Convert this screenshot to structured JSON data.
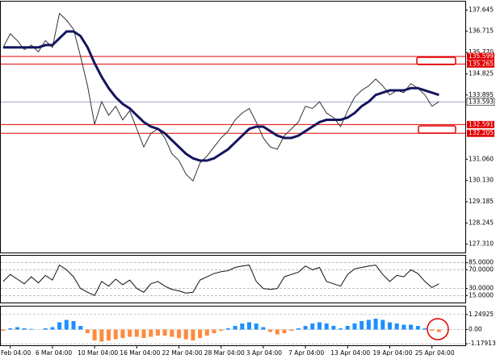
{
  "chart_data": [
    {
      "type": "line",
      "categories": [
        null,
        "Feb 04:00",
        null,
        null,
        null,
        null,
        null,
        "6 Mar 04:00",
        null,
        null,
        null,
        null,
        null,
        "10 Mar 04:00",
        null,
        null,
        null,
        null,
        null,
        "16 Mar 04:00",
        null,
        null,
        null,
        null,
        null,
        "22 Mar 04:00",
        null,
        null,
        null,
        null,
        null,
        "28 Mar 04:00",
        null,
        null,
        null,
        null,
        null,
        "3 Apr 04:00",
        null,
        null,
        null,
        null,
        null,
        "7 Apr 04:00",
        null,
        null,
        null,
        null,
        null,
        "13 Apr 04:00",
        null,
        null,
        null,
        null,
        null,
        "19 Apr 04:00",
        null,
        null,
        null,
        null,
        null,
        "25 Apr 04:00",
        null
      ],
      "series": [
        {
          "color": "#333333",
          "values": [
            136.0,
            136.6,
            136.3,
            135.9,
            136.1,
            135.8,
            136.3,
            136.0,
            137.5,
            137.2,
            136.8,
            135.6,
            134.3,
            132.6,
            133.6,
            133.0,
            133.4,
            132.8,
            133.2,
            132.4,
            131.6,
            132.2,
            132.4,
            132.0,
            131.3,
            131.0,
            130.4,
            130.1,
            130.9,
            131.2,
            131.6,
            132.0,
            132.3,
            132.8,
            133.1,
            133.3,
            132.7,
            132.0,
            131.6,
            131.5,
            132.1,
            132.4,
            132.7,
            133.4,
            133.3,
            133.6,
            133.1,
            132.9,
            132.5,
            133.2,
            133.8,
            134.1,
            134.3,
            134.6,
            134.3,
            133.9,
            134.1,
            134.0,
            134.4,
            134.2,
            133.9,
            133.4,
            133.6
          ]
        },
        {
          "color": "#14145f",
          "values": [
            136.0,
            136.0,
            136.0,
            136.0,
            136.0,
            136.0,
            136.1,
            136.1,
            136.4,
            136.7,
            136.7,
            136.5,
            136.0,
            135.3,
            134.7,
            134.2,
            133.8,
            133.5,
            133.3,
            133.0,
            132.7,
            132.5,
            132.4,
            132.2,
            131.9,
            131.6,
            131.3,
            131.1,
            131.0,
            131.0,
            131.1,
            131.3,
            131.5,
            131.8,
            132.1,
            132.4,
            132.5,
            132.5,
            132.3,
            132.1,
            132.0,
            132.0,
            132.1,
            132.3,
            132.5,
            132.7,
            132.8,
            132.8,
            132.8,
            132.9,
            133.1,
            133.4,
            133.6,
            133.9,
            134.0,
            134.1,
            134.1,
            134.1,
            134.2,
            134.2,
            134.1,
            134.0,
            133.9
          ]
        }
      ],
      "ylim": [
        126.94,
        138.02
      ],
      "yticks": [
        137.645,
        136.715,
        {
          "value": 135.77,
          "label": "135.770"
        },
        134.825,
        133.895,
        {
          "value": 131.06,
          "label": "131.060"
        },
        {
          "value": 130.13,
          "label": "130.130"
        },
        129.185,
        128.245,
        {
          "value": 127.31,
          "label": "127.310"
        }
      ],
      "levels": [
        135.599,
        135.265,
        132.591,
        132.205
      ],
      "level_color": "#e00000",
      "current_price": 133.593
    },
    {
      "type": "line",
      "series": [
        {
          "color": "#111111",
          "values": [
            45,
            60,
            50,
            40,
            55,
            42,
            58,
            48,
            80,
            70,
            55,
            30,
            22,
            15,
            45,
            35,
            50,
            38,
            48,
            30,
            22,
            40,
            45,
            35,
            28,
            25,
            20,
            22,
            48,
            55,
            62,
            66,
            68,
            75,
            78,
            80,
            45,
            30,
            28,
            30,
            55,
            60,
            65,
            78,
            70,
            75,
            45,
            40,
            35,
            60,
            72,
            75,
            78,
            80,
            60,
            45,
            58,
            55,
            70,
            62,
            45,
            32,
            40
          ]
        }
      ],
      "ylim": [
        0,
        100
      ],
      "yticks": [
        {
          "value": 85,
          "label": "85.0000"
        },
        {
          "value": 70,
          "label": "70.0000"
        },
        {
          "value": 30,
          "label": "30.0000"
        },
        {
          "value": 15,
          "label": "15.0000"
        }
      ]
    },
    {
      "type": "bar",
      "values": [
        -0.1,
        0.1,
        0.2,
        0.1,
        0.05,
        0.0,
        0.1,
        0.2,
        0.6,
        0.8,
        0.7,
        0.3,
        -0.3,
        -0.9,
        -1.0,
        -0.9,
        -0.8,
        -0.7,
        -0.6,
        -0.6,
        -0.7,
        -0.6,
        -0.5,
        -0.5,
        -0.6,
        -0.7,
        -0.8,
        -0.9,
        -0.7,
        -0.5,
        -0.3,
        -0.1,
        0.1,
        0.3,
        0.5,
        0.6,
        0.5,
        0.2,
        -0.2,
        -0.4,
        -0.3,
        -0.1,
        0.1,
        0.3,
        0.5,
        0.6,
        0.5,
        0.3,
        0.1,
        0.3,
        0.5,
        0.7,
        0.8,
        0.9,
        0.8,
        0.6,
        0.5,
        0.4,
        0.4,
        0.3,
        0.1,
        -0.1,
        -0.2
      ],
      "positive_color": "#1e8fff",
      "negative_color": "#ff8a3d",
      "ylim": [
        -1.3,
        1.9
      ],
      "yticks": [
        1.24925,
        {
          "value": 0,
          "label": "0.00"
        },
        -1.17913
      ]
    }
  ]
}
